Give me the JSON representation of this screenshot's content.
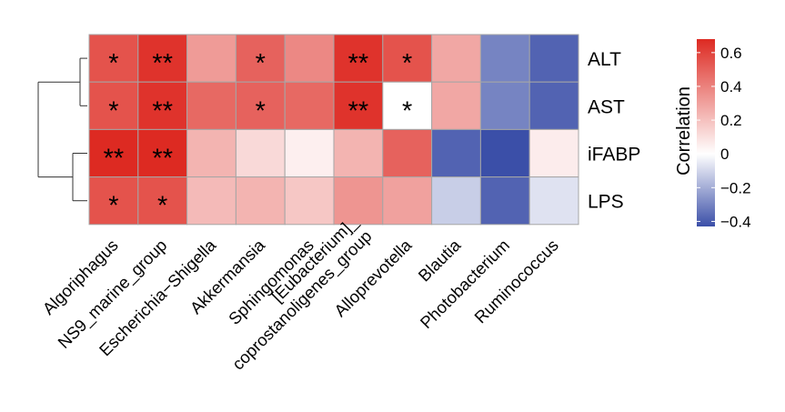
{
  "chart_data": {
    "type": "heatmap",
    "rows": [
      "ALT",
      "AST",
      "iFABP",
      "LPS"
    ],
    "columns": [
      "Algoriphagus",
      "NS9_marine_group",
      "Escherichia−Shigella",
      "Akkermansia",
      "Sphingomonas",
      "[Eubacterium]_coprostanoligenes_group",
      "Alloprevotella",
      "Blautia",
      "Photobacterium",
      "Ruminococcus"
    ],
    "column_label_lines": [
      [
        "Algoriphagus"
      ],
      [
        "NS9_marine_group"
      ],
      [
        "Escherichia−Shigella"
      ],
      [
        "Akkermansia"
      ],
      [
        "Sphingomonas"
      ],
      [
        "[Eubacterium]_",
        "coprostanoligenes_group"
      ],
      [
        "Alloprevotella"
      ],
      [
        "Blautia"
      ],
      [
        "Photobacterium"
      ],
      [
        "Ruminococcus"
      ]
    ],
    "values": [
      [
        0.55,
        0.65,
        0.32,
        0.5,
        0.38,
        0.65,
        0.55,
        0.28,
        -0.3,
        -0.38
      ],
      [
        0.55,
        0.65,
        0.48,
        0.5,
        0.48,
        0.65,
        0.0,
        0.28,
        -0.3,
        -0.38
      ],
      [
        0.68,
        0.68,
        0.24,
        0.12,
        0.05,
        0.24,
        0.5,
        -0.38,
        -0.43,
        0.06
      ],
      [
        0.55,
        0.55,
        0.22,
        0.24,
        0.18,
        0.34,
        0.3,
        -0.12,
        -0.38,
        -0.07
      ]
    ],
    "significance": [
      [
        "*",
        "**",
        "",
        "*",
        "",
        "**",
        "*",
        "",
        "",
        ""
      ],
      [
        "*",
        "**",
        "",
        "*",
        "",
        "**",
        "*",
        "",
        "",
        ""
      ],
      [
        "**",
        "**",
        "",
        "",
        "",
        "",
        "",
        "",
        "",
        ""
      ],
      [
        "*",
        "*",
        "",
        "",
        "",
        "",
        "",
        "",
        "",
        ""
      ]
    ],
    "colorbar": {
      "title": "Correlation",
      "ticks": [
        "0.6",
        "0.4",
        "0.2",
        "0",
        "−0.2",
        "−0.4"
      ],
      "tick_values": [
        0.6,
        0.4,
        0.2,
        0,
        -0.2,
        -0.4
      ],
      "min": -0.43,
      "max": 0.68,
      "low_color": "#3b4fa8",
      "mid_color": "#ffffff",
      "high_color": "#dd2a22"
    },
    "row_dendrogram": {
      "merges": [
        [
          "ALT",
          "AST"
        ],
        [
          "iFABP",
          "LPS"
        ],
        [
          "ALT+AST",
          "iFABP+LPS"
        ]
      ]
    },
    "grid_color": "#a6a6a6"
  }
}
